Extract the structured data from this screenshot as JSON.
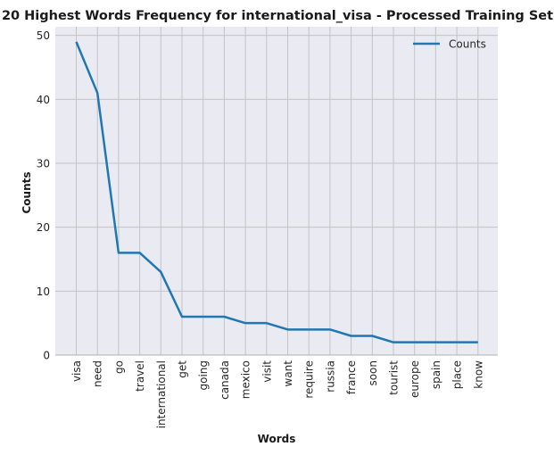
{
  "chart_data": {
    "type": "line",
    "title": "20 Highest Words Frequency for international_visa - Processed Training Set",
    "xlabel": "Words",
    "ylabel": "Counts",
    "categories": [
      "visa",
      "need",
      "go",
      "travel",
      "international",
      "get",
      "going",
      "canada",
      "mexico",
      "visit",
      "want",
      "require",
      "russia",
      "france",
      "soon",
      "tourist",
      "europe",
      "spain",
      "place",
      "know"
    ],
    "series": [
      {
        "name": "Counts",
        "values": [
          49,
          41,
          16,
          16,
          13,
          6,
          6,
          6,
          5,
          5,
          4,
          4,
          4,
          3,
          3,
          2,
          2,
          2,
          2,
          2
        ],
        "color": "#1f77b4"
      }
    ],
    "yticks": [
      0,
      10,
      20,
      30,
      40,
      50
    ],
    "ylim": [
      0,
      51.35
    ],
    "grid": true,
    "legend": "top-right",
    "colors": {
      "plot_background": "#e9eaf2",
      "grid": "#c4c4c4",
      "line": "#1f77b4"
    }
  }
}
